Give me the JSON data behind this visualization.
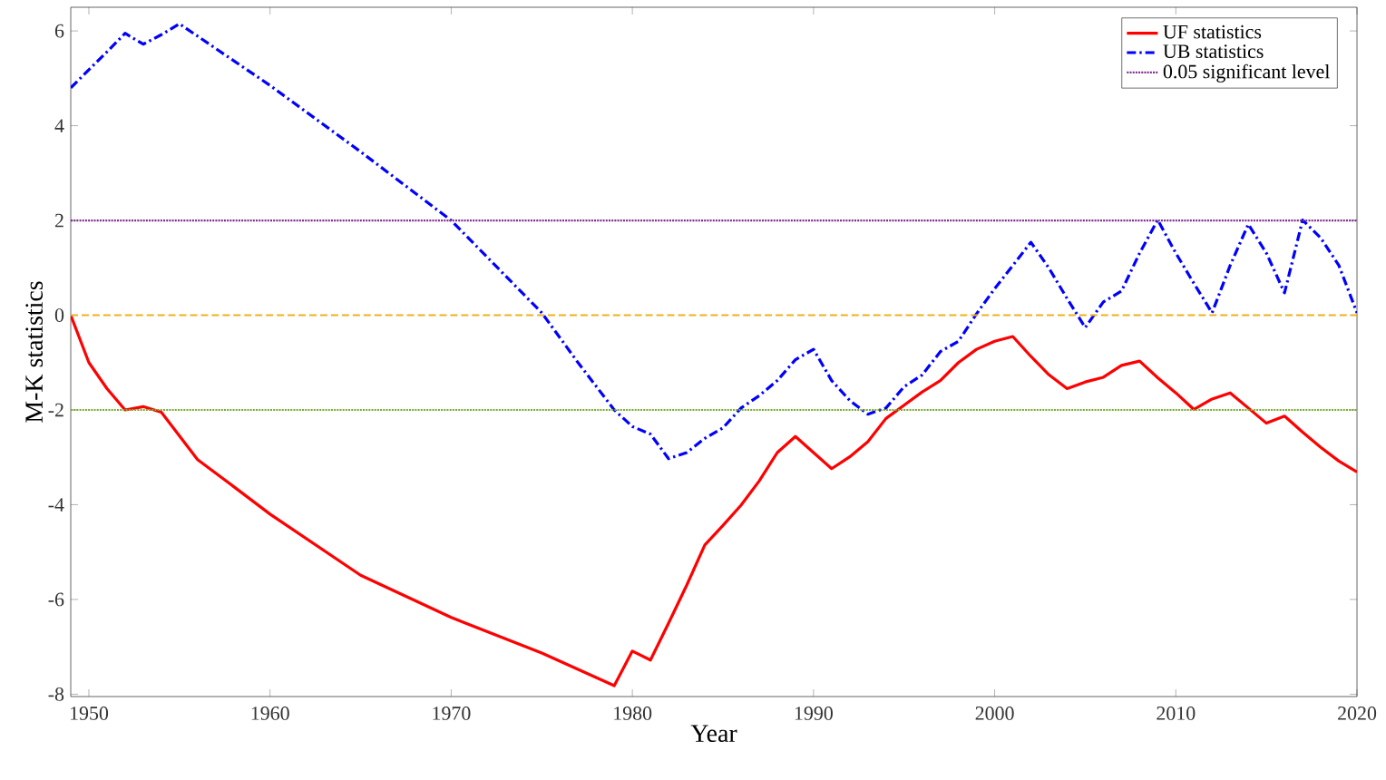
{
  "chart_data": {
    "type": "line",
    "xlabel": "Year",
    "ylabel": "M-K statistics",
    "xlim": [
      1949,
      2020
    ],
    "ylim": [
      -8.05,
      6.5
    ],
    "xticks": [
      1950,
      1960,
      1970,
      1980,
      1990,
      2000,
      2010,
      2020
    ],
    "yticks": [
      -8,
      -6,
      -4,
      -2,
      0,
      2,
      4,
      6
    ],
    "grid": false,
    "legend": "top right",
    "series": [
      {
        "name": "UF statistics",
        "color": "#ff0000",
        "line_style": "solid",
        "x": [
          1949,
          1950,
          1951,
          1952,
          1953,
          1954,
          1956,
          1958,
          1960,
          1965,
          1970,
          1975,
          1979,
          1980,
          1981,
          1982,
          1983,
          1984,
          1985,
          1986,
          1987,
          1988,
          1989,
          1990,
          1991,
          1992,
          1993,
          1994,
          1995,
          1996,
          1997,
          1998,
          1999,
          2000,
          2001,
          2002,
          2003,
          2004,
          2005,
          2006,
          2007,
          2008,
          2009,
          2010,
          2011,
          2012,
          2013,
          2014,
          2015,
          2016,
          2017,
          2018,
          2019,
          2020
        ],
        "values": [
          0,
          -1.0,
          -1.55,
          -2.0,
          -1.93,
          -2.05,
          -3.05,
          -3.62,
          -4.2,
          -5.49,
          -6.38,
          -7.13,
          -7.82,
          -7.09,
          -7.28,
          -6.5,
          -5.7,
          -4.85,
          -4.44,
          -4.01,
          -3.5,
          -2.9,
          -2.56,
          -2.9,
          -3.24,
          -2.99,
          -2.67,
          -2.18,
          -1.9,
          -1.62,
          -1.38,
          -1.0,
          -0.72,
          -0.55,
          -0.45,
          -0.87,
          -1.26,
          -1.55,
          -1.41,
          -1.31,
          -1.06,
          -0.97,
          -1.32,
          -1.64,
          -1.99,
          -1.77,
          -1.64,
          -1.96,
          -2.28,
          -2.13,
          -2.47,
          -2.79,
          -3.08,
          -3.31
        ]
      },
      {
        "name": "UB statistics",
        "color": "#0000ff",
        "line_style": "dashdot",
        "x": [
          1949,
          1950,
          1951,
          1952,
          1953,
          1954,
          1955,
          1960,
          1965,
          1970,
          1975,
          1977,
          1979,
          1980,
          1981,
          1982,
          1983,
          1984,
          1985,
          1986,
          1987,
          1988,
          1989,
          1990,
          1991,
          1992,
          1993,
          1994,
          1995,
          1996,
          1997,
          1998,
          1999,
          2000,
          2001,
          2002,
          2003,
          2004,
          2005,
          2006,
          2007,
          2008,
          2009,
          2010,
          2011,
          2012,
          2013,
          2014,
          2015,
          2016,
          2017,
          2018,
          2019,
          2020
        ],
        "values": [
          4.8,
          5.18,
          5.56,
          5.95,
          5.72,
          5.92,
          6.15,
          4.85,
          3.45,
          2.0,
          0.05,
          -1.0,
          -2.0,
          -2.35,
          -2.51,
          -3.03,
          -2.9,
          -2.6,
          -2.38,
          -1.96,
          -1.7,
          -1.38,
          -0.94,
          -0.72,
          -1.38,
          -1.8,
          -2.09,
          -1.96,
          -1.51,
          -1.26,
          -0.77,
          -0.55,
          0.03,
          0.56,
          1.05,
          1.54,
          0.99,
          0.35,
          -0.26,
          0.28,
          0.51,
          1.31,
          2.01,
          1.31,
          0.67,
          0.05,
          1.05,
          1.92,
          1.31,
          0.47,
          2.01,
          1.63,
          1.05,
          0.05
        ]
      }
    ],
    "ref_lines": [
      {
        "axis": "y",
        "value": 2,
        "label": "0.05 significant level",
        "color": "#7e2f8e",
        "line_style": "dotted"
      },
      {
        "axis": "y",
        "value": 0,
        "color": "#edb120",
        "line_style": "dashed"
      },
      {
        "axis": "y",
        "value": -2,
        "color": "#77ac30",
        "line_style": "dotted"
      }
    ]
  }
}
